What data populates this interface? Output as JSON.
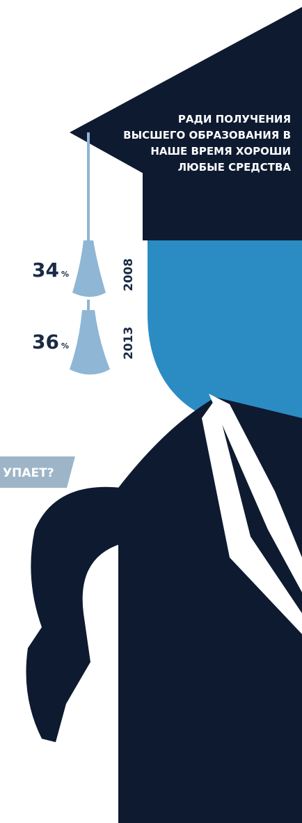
{
  "headline": [
    "РАДИ ПОЛУЧЕНИЯ",
    "ВЫСШЕГО ОБРАЗОВАНИЯ В",
    "НАШЕ ВРЕМЯ ХОРОШИ",
    "ЛЮБЫЕ СРЕДСТВА"
  ],
  "stats": [
    {
      "value": "34",
      "unit": "%",
      "year": "2008"
    },
    {
      "value": "36",
      "unit": "%",
      "year": "2013"
    }
  ],
  "banner": "УПАЕТ?"
}
